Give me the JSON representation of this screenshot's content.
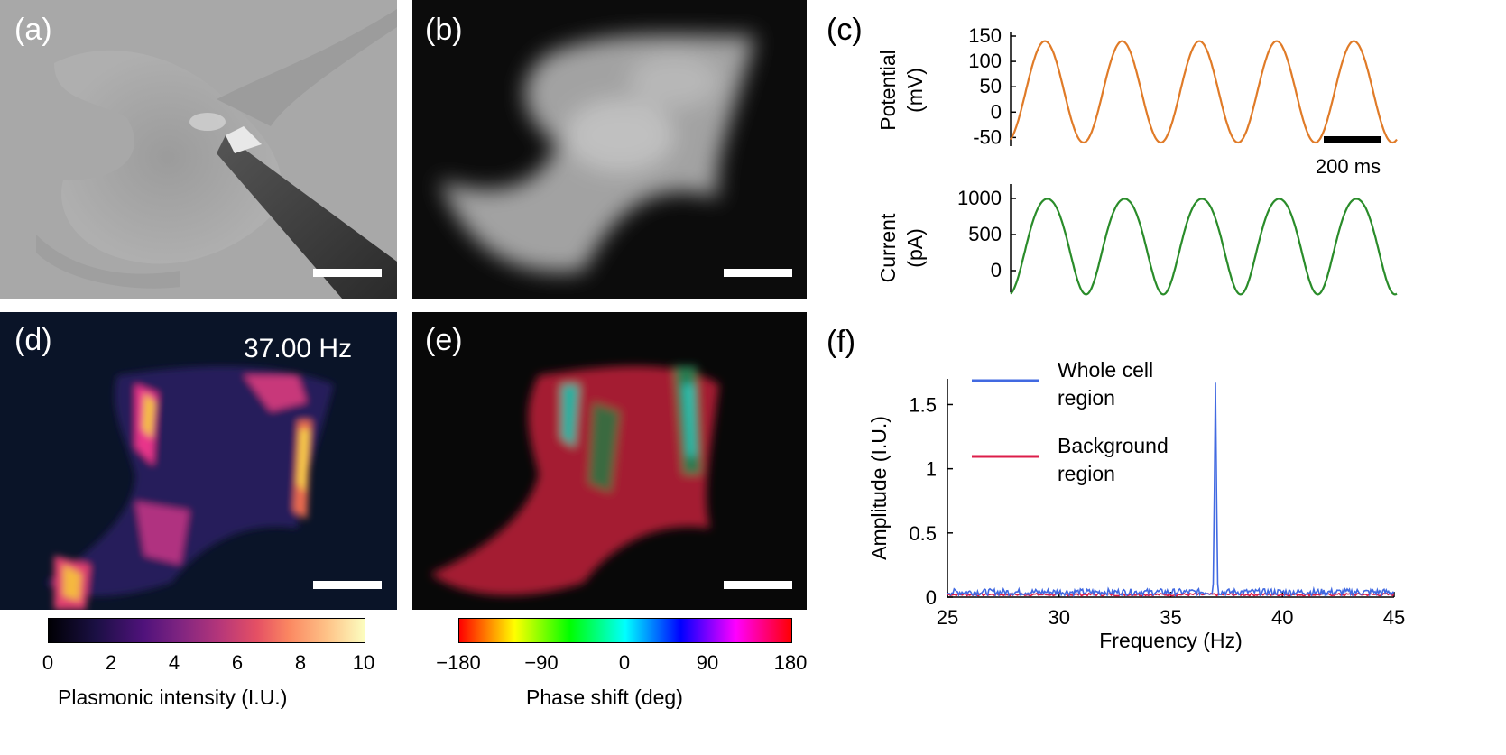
{
  "panels": {
    "a": {
      "label": "(a)"
    },
    "b": {
      "label": "(b)"
    },
    "c": {
      "label": "(c)",
      "potential": {
        "ylabel_line1": "Potential",
        "ylabel_line2": "(mV)",
        "ticks": [
          "150",
          "100",
          "50",
          "0",
          "-50"
        ],
        "scalebar_label": "200 ms",
        "color": "#E07B28"
      },
      "current": {
        "ylabel_line1": "Current",
        "ylabel_line2": "(pA)",
        "ticks": [
          "1000",
          "500",
          "0"
        ],
        "color": "#2A8C2A"
      }
    },
    "d": {
      "label": "(d)",
      "frequency_text": "37.00 Hz"
    },
    "e": {
      "label": "(e)"
    },
    "f": {
      "label": "(f)"
    }
  },
  "colorbar_d": {
    "ticks": [
      "0",
      "2",
      "4",
      "6",
      "8",
      "10"
    ],
    "label": "Plasmonic intensity (I.U.)"
  },
  "colorbar_e": {
    "ticks": [
      "−180",
      "−90",
      "0",
      "90",
      "180"
    ],
    "label": "Phase shift (deg)"
  },
  "chart_data": [
    {
      "type": "line",
      "panel": "c-top",
      "ylabel": "Potential (mV)",
      "yticks": [
        150,
        100,
        50,
        0,
        -50
      ],
      "ylim": [
        -60,
        150
      ],
      "series": [
        {
          "color": "#E07B28",
          "amplitude": 100,
          "offset": 40,
          "cycles": 5
        }
      ],
      "scalebar": "200 ms"
    },
    {
      "type": "line",
      "panel": "c-bottom",
      "ylabel": "Current (pA)",
      "yticks": [
        1000,
        500,
        0
      ],
      "ylim": [
        -300,
        1200
      ],
      "series": [
        {
          "color": "#2A8C2A",
          "amplitude": 720,
          "offset": 390,
          "cycles": 5
        }
      ]
    },
    {
      "type": "line",
      "panel": "f",
      "xlabel": "Frequency (Hz)",
      "ylabel": "Amplitude (I.U.)",
      "xlim": [
        25,
        45
      ],
      "ylim": [
        0,
        1.7
      ],
      "xticks": [
        "25",
        "30",
        "35",
        "40",
        "45"
      ],
      "yticks": [
        "0",
        "0.5",
        "1",
        "1.5"
      ],
      "legend_placement": "top-left",
      "series": [
        {
          "name": "Whole cell region",
          "color": "#4169E1",
          "baseline": 0.04,
          "peak_x": 37.0,
          "peak_y": 1.67
        },
        {
          "name": "Background region",
          "color": "#DC1E4A",
          "baseline": 0.02
        }
      ],
      "legend": [
        {
          "line1": "Whole cell",
          "line2": "region",
          "color": "#4169E1"
        },
        {
          "line1": "Background",
          "line2": "region",
          "color": "#DC1E4A"
        }
      ]
    }
  ]
}
